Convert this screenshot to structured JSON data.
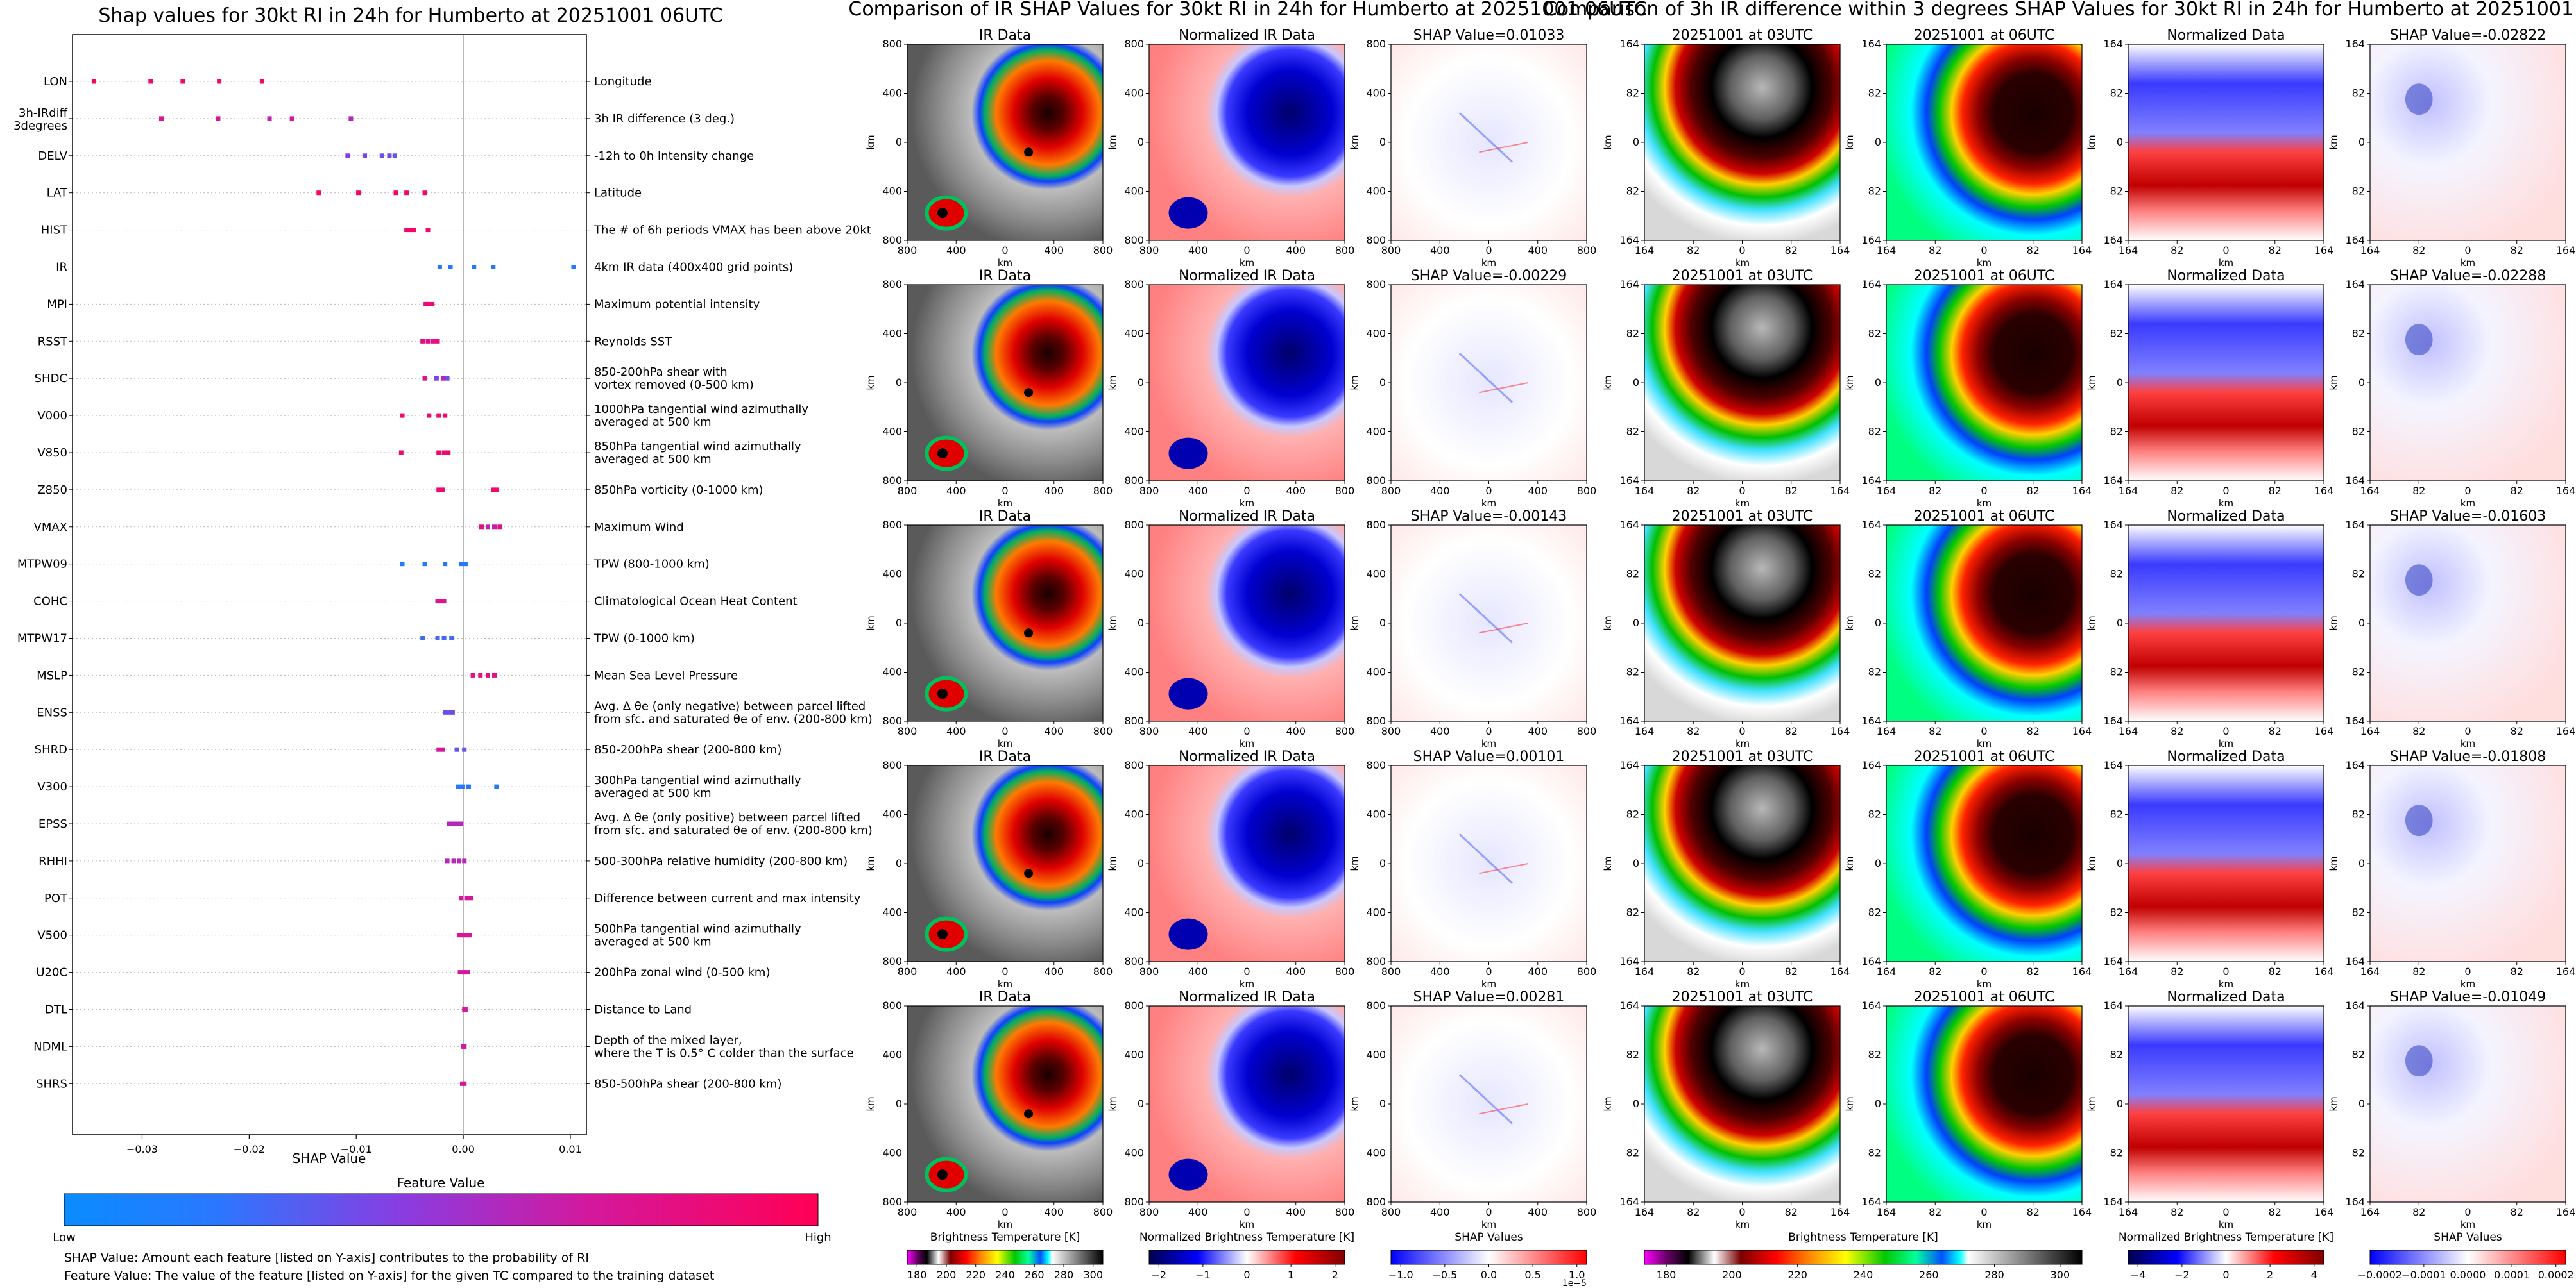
{
  "shap_panel": {
    "title": "Shap values for 30kt RI in 24h for Humberto at 20251001 06UTC",
    "xlabel": "SHAP Value",
    "xtick_labels": [
      "−0.03",
      "−0.02",
      "−0.01",
      "0.00",
      "0.01"
    ],
    "colorbar_title": "Feature Value",
    "colorbar_low": "Low",
    "colorbar_high": "High",
    "note1": "SHAP Value: Amount each feature [listed on Y-axis] contributes to the probability of RI",
    "note2": "Feature Value: The value of the feature [listed on Y-axis] for the given TC compared to the training dataset"
  },
  "ir_section": {
    "title": "Comparison of IR SHAP Values for 30kt RI in 24h for Humberto at 20251001 06UTC",
    "col_titles": [
      "IR Data",
      "Normalized IR Data"
    ],
    "shap_titles": [
      "SHAP Value=0.01033",
      "SHAP Value=-0.00229",
      "SHAP Value=-0.00143",
      "SHAP Value=0.00101",
      "SHAP Value=0.00281"
    ],
    "axis_label": "km",
    "ticks": [
      "800",
      "400",
      "0",
      "400",
      "800"
    ],
    "colorbars": [
      {
        "label": "Brightness Temperature [K]",
        "ticks": [
          "180",
          "200",
          "220",
          "240",
          "260",
          "280",
          "300"
        ]
      },
      {
        "label": "Normalized Brightness Temperature [K]",
        "ticks": [
          "−2",
          "−1",
          "0",
          "1",
          "2"
        ]
      },
      {
        "label": "SHAP Values",
        "ticks": [
          "−1.0",
          "−0.5",
          "0.0",
          "0.5",
          "1.0"
        ],
        "exponent": "1e−5"
      }
    ]
  },
  "diff_section": {
    "title": "Comparison of 3h IR difference within 3 degrees SHAP Values for 30kt RI in 24h for Humberto at 20251001 06UTC",
    "col_titles": [
      "20251001 at 03UTC",
      "20251001 at 06UTC",
      "Normalized Data"
    ],
    "shap_titles": [
      "SHAP Value=-0.02822",
      "SHAP Value=-0.02288",
      "SHAP Value=-0.01603",
      "SHAP Value=-0.01808",
      "SHAP Value=-0.01049"
    ],
    "axis_label": "km",
    "ticks": [
      "164",
      "82",
      "0",
      "82",
      "164"
    ],
    "colorbars": [
      {
        "label": "Brightness Temperature [K]",
        "ticks": [
          "180",
          "200",
          "220",
          "240",
          "260",
          "280",
          "300"
        ]
      },
      {
        "label": "Normalized Brightness Temperature [K]",
        "ticks": [
          "−4",
          "−2",
          "0",
          "2",
          "4"
        ]
      },
      {
        "label": "SHAP Values",
        "ticks": [
          "−0.0002",
          "−0.0001",
          "0.0000",
          "0.0001",
          "0.0002"
        ]
      }
    ]
  },
  "chart_data": [
    {
      "type": "scatter",
      "title": "Shap values for 30kt RI in 24h for Humberto at 20251001 06UTC",
      "xlabel": "SHAP Value",
      "ylabel": "",
      "xlim": [
        -0.0365,
        0.0115
      ],
      "grid": false,
      "colorscale": {
        "low": "#0a8cff",
        "high": "#ff0055",
        "low_label": "Low",
        "high_label": "High",
        "title": "Feature Value"
      },
      "features": [
        {
          "short": "LON",
          "desc": "Longitude",
          "points": [
            [
              -0.0345,
              0.95
            ],
            [
              -0.0292,
              0.9
            ],
            [
              -0.0262,
              0.93
            ],
            [
              -0.0228,
              0.9
            ],
            [
              -0.0188,
              0.92
            ]
          ]
        },
        {
          "short": "3h-IRdiff\n3degrees",
          "desc": "3h IR difference (3 deg.)",
          "points": [
            [
              -0.0282,
              0.75
            ],
            [
              -0.0229,
              0.72
            ],
            [
              -0.0181,
              0.65
            ],
            [
              -0.016,
              0.7
            ],
            [
              -0.0105,
              0.6
            ]
          ]
        },
        {
          "short": "DELV",
          "desc": "-12h to 0h Intensity change",
          "points": [
            [
              -0.0108,
              0.45
            ],
            [
              -0.0092,
              0.4
            ],
            [
              -0.0076,
              0.35
            ],
            [
              -0.0069,
              0.4
            ],
            [
              -0.0064,
              0.3
            ]
          ]
        },
        {
          "short": "LAT",
          "desc": "Latitude",
          "points": [
            [
              -0.0135,
              0.95
            ],
            [
              -0.0098,
              0.92
            ],
            [
              -0.0063,
              0.93
            ],
            [
              -0.0053,
              0.9
            ],
            [
              -0.0036,
              0.91
            ]
          ]
        },
        {
          "short": "HIST",
          "desc": "The # of 6h periods VMAX has been above 20kt",
          "points": [
            [
              -0.0053,
              0.9
            ],
            [
              -0.0049,
              0.92
            ],
            [
              -0.0046,
              0.93
            ],
            [
              -0.0033,
              0.9
            ]
          ]
        },
        {
          "short": "IR",
          "desc": "4km IR data (400x400 grid points)",
          "points": [
            [
              -0.0022,
              0.1
            ],
            [
              -0.0012,
              0.1
            ],
            [
              0.001,
              0.1
            ],
            [
              0.0028,
              0.1
            ],
            [
              0.0103,
              0.1
            ]
          ]
        },
        {
          "short": "MPI",
          "desc": "Maximum potential intensity",
          "points": [
            [
              -0.0035,
              0.85
            ],
            [
              -0.0032,
              0.85
            ],
            [
              -0.0029,
              0.85
            ]
          ]
        },
        {
          "short": "RSST",
          "desc": "Reynolds SST",
          "points": [
            [
              -0.0038,
              0.8
            ],
            [
              -0.0033,
              0.8
            ],
            [
              -0.0028,
              0.8
            ],
            [
              -0.0024,
              0.8
            ]
          ]
        },
        {
          "short": "SHDC",
          "desc": "850-200hPa shear with\nvortex removed (0-500 km)",
          "points": [
            [
              -0.0036,
              0.75
            ],
            [
              -0.0025,
              0.4
            ],
            [
              -0.0019,
              0.6
            ],
            [
              -0.0015,
              0.35
            ]
          ]
        },
        {
          "short": "V000",
          "desc": "1000hPa tangential wind azimuthally\naveraged at 500 km",
          "points": [
            [
              -0.0057,
              0.9
            ],
            [
              -0.0032,
              0.9
            ],
            [
              -0.0023,
              0.9
            ],
            [
              -0.0017,
              0.9
            ]
          ]
        },
        {
          "short": "V850",
          "desc": "850hPa tangential wind azimuthally\naveraged at 500 km",
          "points": [
            [
              -0.0058,
              0.9
            ],
            [
              -0.0023,
              0.9
            ],
            [
              -0.0018,
              0.9
            ],
            [
              -0.0014,
              0.9
            ]
          ]
        },
        {
          "short": "Z850",
          "desc": "850hPa vorticity (0-1000 km)",
          "points": [
            [
              -0.0023,
              0.9
            ],
            [
              -0.0019,
              0.9
            ],
            [
              0.0028,
              0.9
            ],
            [
              0.0031,
              0.9
            ]
          ]
        },
        {
          "short": "VMAX",
          "desc": "Maximum Wind",
          "points": [
            [
              0.0017,
              0.85
            ],
            [
              0.0023,
              0.6
            ],
            [
              0.0029,
              0.65
            ],
            [
              0.0034,
              0.8
            ]
          ]
        },
        {
          "short": "MTPW09",
          "desc": "TPW (800-1000 km)",
          "points": [
            [
              -0.0057,
              0.1
            ],
            [
              -0.0036,
              0.1
            ],
            [
              -0.0017,
              0.1
            ],
            [
              -0.0002,
              0.1
            ],
            [
              0.0002,
              0.1
            ]
          ]
        },
        {
          "short": "COHC",
          "desc": "Climatological Ocean Heat Content",
          "points": [
            [
              -0.0024,
              0.75
            ],
            [
              -0.0021,
              0.75
            ],
            [
              -0.0018,
              0.75
            ]
          ]
        },
        {
          "short": "MTPW17",
          "desc": "TPW (0-1000 km)",
          "points": [
            [
              -0.0038,
              0.2
            ],
            [
              -0.0024,
              0.2
            ],
            [
              -0.0018,
              0.2
            ],
            [
              -0.0011,
              0.2
            ]
          ]
        },
        {
          "short": "MSLP",
          "desc": "Mean Sea Level Pressure",
          "points": [
            [
              0.0009,
              0.8
            ],
            [
              0.0016,
              0.8
            ],
            [
              0.0023,
              0.8
            ],
            [
              0.0029,
              0.8
            ]
          ]
        },
        {
          "short": "ENSS",
          "desc": "Avg. Δ θe (only negative) between parcel lifted\nfrom sfc. and saturated θe of env. (200-800 km)",
          "points": [
            [
              -0.0017,
              0.35
            ],
            [
              -0.0013,
              0.35
            ],
            [
              -0.001,
              0.35
            ]
          ]
        },
        {
          "short": "SHRD",
          "desc": "850-200hPa shear (200-800 km)",
          "points": [
            [
              -0.0023,
              0.7
            ],
            [
              -0.0019,
              0.7
            ],
            [
              -0.0006,
              0.3
            ],
            [
              0.0001,
              0.3
            ]
          ]
        },
        {
          "short": "V300",
          "desc": "300hPa tangential wind azimuthally\naveraged at 500 km",
          "points": [
            [
              -0.0005,
              0.1
            ],
            [
              -0.0001,
              0.1
            ],
            [
              0.0005,
              0.1
            ],
            [
              0.0031,
              0.1
            ]
          ]
        },
        {
          "short": "EPSS",
          "desc": "Avg. Δ θe (only positive) between parcel lifted\nfrom sfc. and saturated θe of env. (200-800 km)",
          "points": [
            [
              -0.0013,
              0.6
            ],
            [
              -0.0009,
              0.6
            ],
            [
              -0.0005,
              0.6
            ],
            [
              -0.0002,
              0.6
            ]
          ]
        },
        {
          "short": "RHHI",
          "desc": "500-300hPa relative humidity (200-800 km)",
          "points": [
            [
              -0.0015,
              0.6
            ],
            [
              -0.0009,
              0.6
            ],
            [
              -0.0004,
              0.6
            ],
            [
              0.0001,
              0.6
            ]
          ]
        },
        {
          "short": "POT",
          "desc": "Difference between current and max intensity",
          "points": [
            [
              -0.0002,
              0.7
            ],
            [
              0.0003,
              0.7
            ],
            [
              0.0007,
              0.7
            ]
          ]
        },
        {
          "short": "V500",
          "desc": "500hPa tangential wind azimuthally\naveraged at 500 km",
          "points": [
            [
              -0.0004,
              0.7
            ],
            [
              0.0,
              0.7
            ],
            [
              0.0003,
              0.7
            ],
            [
              0.0006,
              0.7
            ]
          ]
        },
        {
          "short": "U20C",
          "desc": "200hPa zonal wind (0-500 km)",
          "points": [
            [
              -0.0003,
              0.7
            ],
            [
              0.0001,
              0.7
            ],
            [
              0.0004,
              0.7
            ]
          ]
        },
        {
          "short": "DTL",
          "desc": "Distance to Land",
          "points": [
            [
              0.0001,
              0.7
            ],
            [
              0.0002,
              0.7
            ]
          ]
        },
        {
          "short": "NDML",
          "desc": "Depth of the mixed layer,\nwhere the T is 0.5° C colder than the surface",
          "points": [
            [
              0.0,
              0.7
            ],
            [
              0.0001,
              0.7
            ]
          ]
        },
        {
          "short": "SHRS",
          "desc": "850-500hPa shear (200-800 km)",
          "points": [
            [
              -0.0001,
              0.7
            ],
            [
              0.0001,
              0.7
            ]
          ]
        }
      ]
    }
  ]
}
